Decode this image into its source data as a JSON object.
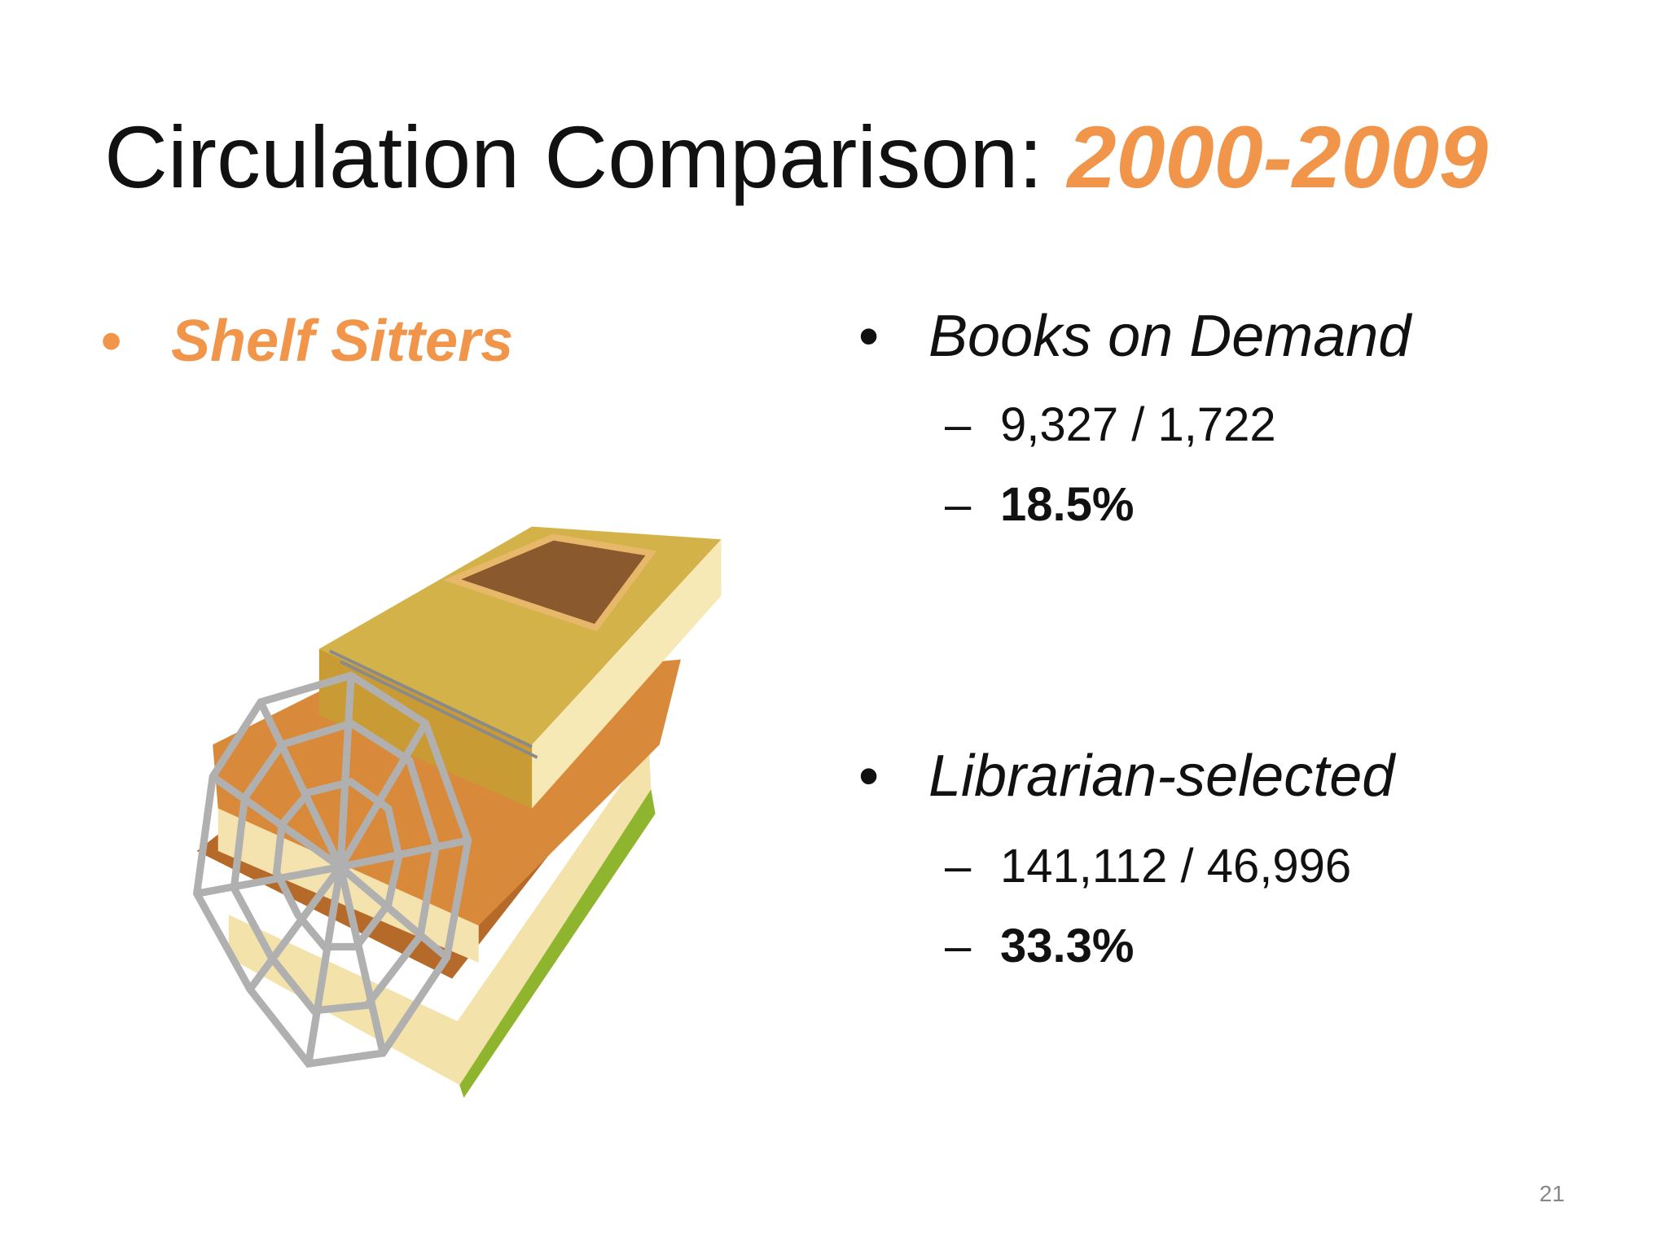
{
  "title": {
    "text": "Circulation Comparison:",
    "highlight": "2000-2009"
  },
  "left": {
    "bullet": "Shelf Sitters"
  },
  "right": [
    {
      "heading": "Books on Demand",
      "counts": "9,327 / 1,722",
      "percent": "18.5%"
    },
    {
      "heading": "Librarian-selected",
      "counts": "141,112 / 46,996",
      "percent": "33.3%"
    }
  ],
  "page_number": "21"
}
